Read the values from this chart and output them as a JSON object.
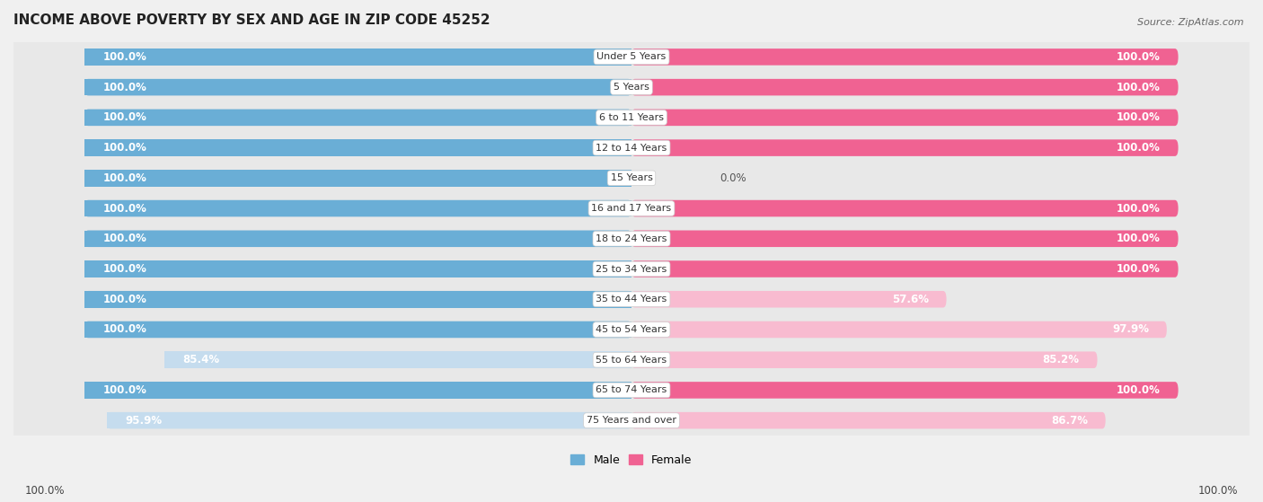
{
  "title": "INCOME ABOVE POVERTY BY SEX AND AGE IN ZIP CODE 45252",
  "source": "Source: ZipAtlas.com",
  "categories": [
    "Under 5 Years",
    "5 Years",
    "6 to 11 Years",
    "12 to 14 Years",
    "15 Years",
    "16 and 17 Years",
    "18 to 24 Years",
    "25 to 34 Years",
    "35 to 44 Years",
    "45 to 54 Years",
    "55 to 64 Years",
    "65 to 74 Years",
    "75 Years and over"
  ],
  "male_values": [
    100.0,
    100.0,
    100.0,
    100.0,
    100.0,
    100.0,
    100.0,
    100.0,
    100.0,
    100.0,
    85.4,
    100.0,
    95.9
  ],
  "female_values": [
    100.0,
    100.0,
    100.0,
    100.0,
    0.0,
    100.0,
    100.0,
    100.0,
    57.6,
    97.9,
    85.2,
    100.0,
    86.7
  ],
  "male_color": "#6aaed6",
  "female_color": "#f06292",
  "male_color_light": "#c5dcee",
  "female_color_light": "#f8bbd0",
  "background_color": "#f0f0f0",
  "row_bg_color": "#e8e8e8",
  "row_white_color": "#ffffff",
  "title_fontsize": 11,
  "label_fontsize": 8,
  "legend_fontsize": 9,
  "value_fontsize": 8.5
}
